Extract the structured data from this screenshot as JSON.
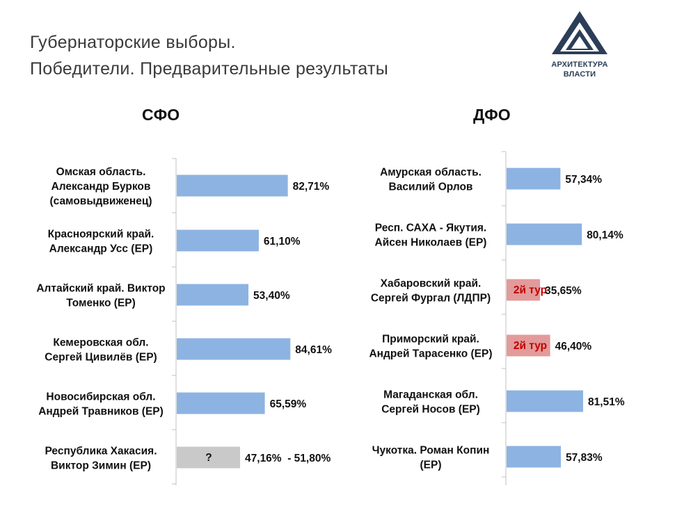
{
  "header": {
    "title_line1": "Губернаторские выборы.",
    "title_line2": "Победители. Предварительные результаты"
  },
  "logo": {
    "line1": "АРХИТЕКТУРА",
    "line2": "ВЛАСТИ",
    "color": "#2c3e57"
  },
  "colors": {
    "bar": "#8db3e2",
    "bar_pending": "#c9c9c9",
    "bar_runoff": "#e39a9a",
    "runoff_text": "#c00000",
    "axis": "#c0c0c0"
  },
  "chart_data": [
    {
      "type": "bar",
      "orientation": "horizontal",
      "title": "СФО",
      "xlim": [
        0,
        100
      ],
      "categories": [
        [
          "Омская область.",
          "Александр Бурков",
          "(самовыдвиженец)"
        ],
        [
          "Красноярский край.",
          "Александр Усс (ЕР)"
        ],
        [
          "Алтайский край. Виктор",
          "Томенко (ЕР)"
        ],
        [
          "Кемеровская обл.",
          "Сергей Цивилёв (ЕР)"
        ],
        [
          "Новосибирская обл.",
          "Андрей Травников (ЕР)"
        ],
        [
          "Республика Хакасия.",
          "Виктор Зимин (ЕР)"
        ]
      ],
      "values": [
        82.71,
        61.1,
        53.4,
        84.61,
        65.59,
        47.16
      ],
      "value_labels": [
        "82,71%",
        "61,10%",
        "53,40%",
        "84,61%",
        "65,59%",
        "47,16%  - 51,80%"
      ],
      "status": [
        "",
        "",
        "",
        "",
        "",
        "?"
      ]
    },
    {
      "type": "bar",
      "orientation": "horizontal",
      "title": "ДФО",
      "xlim": [
        0,
        100
      ],
      "categories": [
        [
          "Амурская область.",
          "Василий Орлов"
        ],
        [
          "Респ. САХА - Якутия.",
          "Айсен Николаев (ЕР)"
        ],
        [
          "Хабаровский край.",
          "Сергей Фургал (ЛДПР)"
        ],
        [
          "Приморский край.",
          "Андрей Тарасенко (ЕР)"
        ],
        [
          "Магаданская обл.",
          "Сергей Носов (ЕР)"
        ],
        [
          "Чукотка. Роман Копин",
          "(ЕР)"
        ]
      ],
      "values": [
        57.34,
        80.14,
        35.65,
        46.4,
        81.51,
        57.83
      ],
      "value_labels": [
        "57,34%",
        "80,14%",
        "35,65%",
        "46,40%",
        "81,51%",
        "57,83%"
      ],
      "status": [
        "",
        "",
        "2й тур",
        "2й тур",
        "",
        ""
      ]
    }
  ]
}
